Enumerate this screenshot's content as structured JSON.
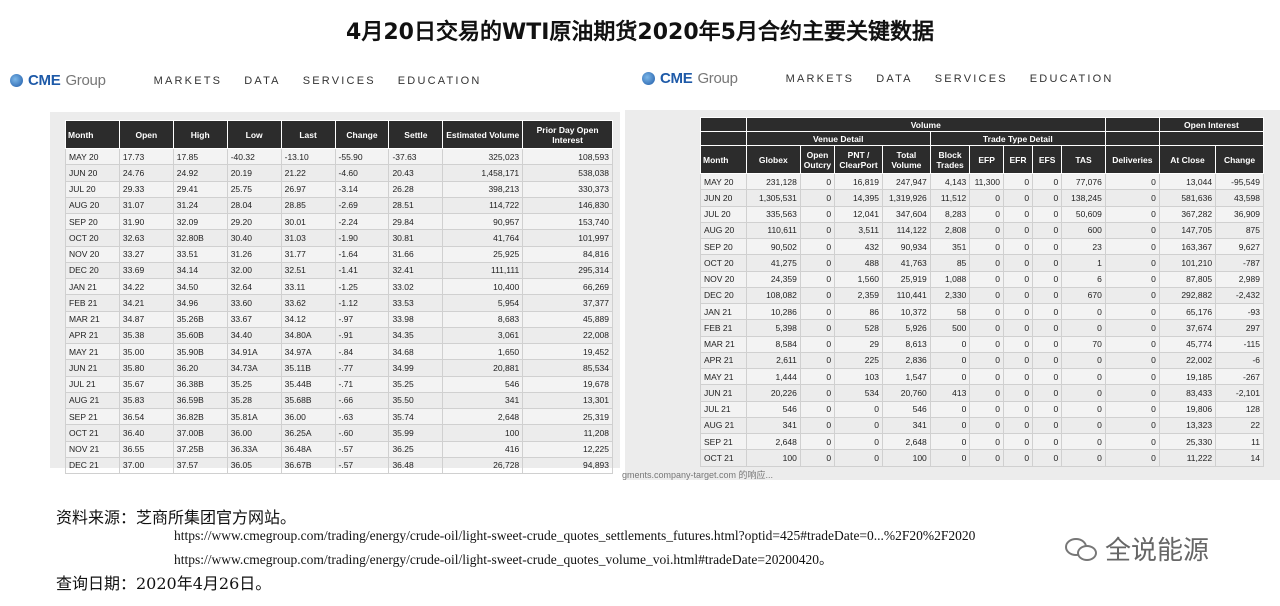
{
  "title": "4月20日交易的WTI原油期货2020年5月合约主要关键数据",
  "header_left": {
    "logo": "CME",
    "logo_group": "Group",
    "nav": [
      "MARKETS",
      "DATA",
      "SERVICES",
      "EDUCATION"
    ]
  },
  "header_right": {
    "logo": "CME",
    "logo_group": "Group",
    "nav": [
      "MARKETS",
      "DATA",
      "SERVICES",
      "EDUCATION"
    ]
  },
  "settlements": {
    "columns": [
      "Month",
      "Open",
      "High",
      "Low",
      "Last",
      "Change",
      "Settle",
      "Estimated Volume",
      "Prior Day Open Interest"
    ],
    "rows": [
      [
        "MAY 20",
        "17.73",
        "17.85",
        "-40.32",
        "-13.10",
        "-55.90",
        "-37.63",
        "325,023",
        "108,593"
      ],
      [
        "JUN 20",
        "24.76",
        "24.92",
        "20.19",
        "21.22",
        "-4.60",
        "20.43",
        "1,458,171",
        "538,038"
      ],
      [
        "JUL 20",
        "29.33",
        "29.41",
        "25.75",
        "26.97",
        "-3.14",
        "26.28",
        "398,213",
        "330,373"
      ],
      [
        "AUG 20",
        "31.07",
        "31.24",
        "28.04",
        "28.85",
        "-2.69",
        "28.51",
        "114,722",
        "146,830"
      ],
      [
        "SEP 20",
        "31.90",
        "32.09",
        "29.20",
        "30.01",
        "-2.24",
        "29.84",
        "90,957",
        "153,740"
      ],
      [
        "OCT 20",
        "32.63",
        "32.80B",
        "30.40",
        "31.03",
        "-1.90",
        "30.81",
        "41,764",
        "101,997"
      ],
      [
        "NOV 20",
        "33.27",
        "33.51",
        "31.26",
        "31.77",
        "-1.64",
        "31.66",
        "25,925",
        "84,816"
      ],
      [
        "DEC 20",
        "33.69",
        "34.14",
        "32.00",
        "32.51",
        "-1.41",
        "32.41",
        "111,111",
        "295,314"
      ],
      [
        "JAN 21",
        "34.22",
        "34.50",
        "32.64",
        "33.11",
        "-1.25",
        "33.02",
        "10,400",
        "66,269"
      ],
      [
        "FEB 21",
        "34.21",
        "34.96",
        "33.60",
        "33.62",
        "-1.12",
        "33.53",
        "5,954",
        "37,377"
      ],
      [
        "MAR 21",
        "34.87",
        "35.26B",
        "33.67",
        "34.12",
        "-.97",
        "33.98",
        "8,683",
        "45,889"
      ],
      [
        "APR 21",
        "35.38",
        "35.60B",
        "34.40",
        "34.80A",
        "-.91",
        "34.35",
        "3,061",
        "22,008"
      ],
      [
        "MAY 21",
        "35.00",
        "35.90B",
        "34.91A",
        "34.97A",
        "-.84",
        "34.68",
        "1,650",
        "19,452"
      ],
      [
        "JUN 21",
        "35.80",
        "36.20",
        "34.73A",
        "35.11B",
        "-.77",
        "34.99",
        "20,881",
        "85,534"
      ],
      [
        "JUL 21",
        "35.67",
        "36.38B",
        "35.25",
        "35.44B",
        "-.71",
        "35.25",
        "546",
        "19,678"
      ],
      [
        "AUG 21",
        "35.83",
        "36.59B",
        "35.28",
        "35.68B",
        "-.66",
        "35.50",
        "341",
        "13,301"
      ],
      [
        "SEP 21",
        "36.54",
        "36.82B",
        "35.81A",
        "36.00",
        "-.63",
        "35.74",
        "2,648",
        "25,319"
      ],
      [
        "OCT 21",
        "36.40",
        "37.00B",
        "36.00",
        "36.25A",
        "-.60",
        "35.99",
        "100",
        "11,208"
      ],
      [
        "NOV 21",
        "36.55",
        "37.25B",
        "36.33A",
        "36.48A",
        "-.57",
        "36.25",
        "416",
        "12,225"
      ],
      [
        "DEC 21",
        "37.00",
        "37.57",
        "36.05",
        "36.67B",
        "-.57",
        "36.48",
        "26,728",
        "94,893"
      ]
    ]
  },
  "volume": {
    "group_headers": {
      "volume": "Volume",
      "venue_detail": "Venue Detail",
      "trade_type_detail": "Trade Type Detail",
      "open_interest": "Open Interest"
    },
    "columns": [
      "Month",
      "Globex",
      "Open Outcry",
      "PNT / ClearPort",
      "Total Volume",
      "Block Trades",
      "EFP",
      "EFR",
      "EFS",
      "TAS",
      "Deliveries",
      "At Close",
      "Change"
    ],
    "rows": [
      [
        "MAY 20",
        "231,128",
        "0",
        "16,819",
        "247,947",
        "4,143",
        "11,300",
        "0",
        "0",
        "77,076",
        "0",
        "13,044",
        "-95,549"
      ],
      [
        "JUN 20",
        "1,305,531",
        "0",
        "14,395",
        "1,319,926",
        "11,512",
        "0",
        "0",
        "0",
        "138,245",
        "0",
        "581,636",
        "43,598"
      ],
      [
        "JUL 20",
        "335,563",
        "0",
        "12,041",
        "347,604",
        "8,283",
        "0",
        "0",
        "0",
        "50,609",
        "0",
        "367,282",
        "36,909"
      ],
      [
        "AUG 20",
        "110,611",
        "0",
        "3,511",
        "114,122",
        "2,808",
        "0",
        "0",
        "0",
        "600",
        "0",
        "147,705",
        "875"
      ],
      [
        "SEP 20",
        "90,502",
        "0",
        "432",
        "90,934",
        "351",
        "0",
        "0",
        "0",
        "23",
        "0",
        "163,367",
        "9,627"
      ],
      [
        "OCT 20",
        "41,275",
        "0",
        "488",
        "41,763",
        "85",
        "0",
        "0",
        "0",
        "1",
        "0",
        "101,210",
        "-787"
      ],
      [
        "NOV 20",
        "24,359",
        "0",
        "1,560",
        "25,919",
        "1,088",
        "0",
        "0",
        "0",
        "6",
        "0",
        "87,805",
        "2,989"
      ],
      [
        "DEC 20",
        "108,082",
        "0",
        "2,359",
        "110,441",
        "2,330",
        "0",
        "0",
        "0",
        "670",
        "0",
        "292,882",
        "-2,432"
      ],
      [
        "JAN 21",
        "10,286",
        "0",
        "86",
        "10,372",
        "58",
        "0",
        "0",
        "0",
        "0",
        "0",
        "65,176",
        "-93"
      ],
      [
        "FEB 21",
        "5,398",
        "0",
        "528",
        "5,926",
        "500",
        "0",
        "0",
        "0",
        "0",
        "0",
        "37,674",
        "297"
      ],
      [
        "MAR 21",
        "8,584",
        "0",
        "29",
        "8,613",
        "0",
        "0",
        "0",
        "0",
        "70",
        "0",
        "45,774",
        "-115"
      ],
      [
        "APR 21",
        "2,611",
        "0",
        "225",
        "2,836",
        "0",
        "0",
        "0",
        "0",
        "0",
        "0",
        "22,002",
        "-6"
      ],
      [
        "MAY 21",
        "1,444",
        "0",
        "103",
        "1,547",
        "0",
        "0",
        "0",
        "0",
        "0",
        "0",
        "19,185",
        "-267"
      ],
      [
        "JUN 21",
        "20,226",
        "0",
        "534",
        "20,760",
        "413",
        "0",
        "0",
        "0",
        "0",
        "0",
        "83,433",
        "-2,101"
      ],
      [
        "JUL 21",
        "546",
        "0",
        "0",
        "546",
        "0",
        "0",
        "0",
        "0",
        "0",
        "0",
        "19,806",
        "128"
      ],
      [
        "AUG 21",
        "341",
        "0",
        "0",
        "341",
        "0",
        "0",
        "0",
        "0",
        "0",
        "0",
        "13,323",
        "22"
      ],
      [
        "SEP 21",
        "2,648",
        "0",
        "0",
        "2,648",
        "0",
        "0",
        "0",
        "0",
        "0",
        "0",
        "25,330",
        "11"
      ],
      [
        "OCT 21",
        "100",
        "0",
        "0",
        "100",
        "0",
        "0",
        "0",
        "0",
        "0",
        "0",
        "11,222",
        "14"
      ]
    ]
  },
  "url_fragment": "gments.company-target.com 的响应...",
  "footer": {
    "source_label": "资料来源：芝商所集团官方网站。",
    "link1": "https://www.cmegroup.com/trading/energy/crude-oil/light-sweet-crude_quotes_settlements_futures.html?optid=425#tradeDate=0...%2F20%2F2020",
    "link2": "https://www.cmegroup.com/trading/energy/crude-oil/light-sweet-crude_quotes_volume_voi.html#tradeDate=20200420。",
    "date_label": "查询日期：2020年4月26日。"
  },
  "watermark": "全说能源"
}
